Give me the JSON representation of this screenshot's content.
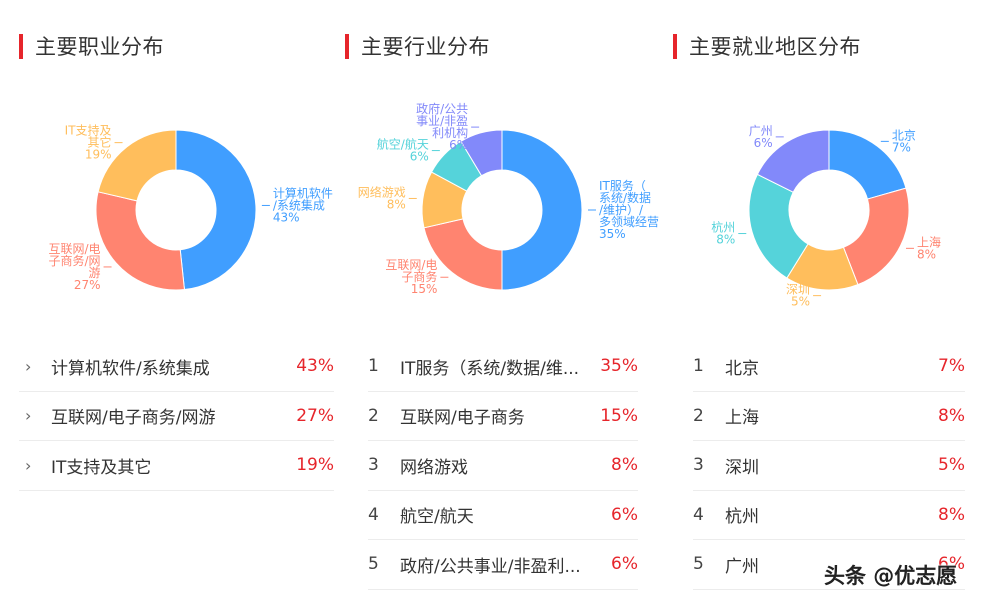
{
  "panels": [
    {
      "title": "主要职业分布",
      "list": [
        {
          "name": "计算机软件/系统集成",
          "pct": "43%"
        },
        {
          "name": "互联网/电子商务/网游",
          "pct": "27%"
        },
        {
          "name": "IT支持及其它",
          "pct": "19%"
        }
      ]
    },
    {
      "title": "主要行业分布",
      "list": [
        {
          "idx": "1",
          "name": "IT服务（系统/数据/维...",
          "pct": "35%"
        },
        {
          "idx": "2",
          "name": "互联网/电子商务",
          "pct": "15%"
        },
        {
          "idx": "3",
          "name": "网络游戏",
          "pct": "8%"
        },
        {
          "idx": "4",
          "name": "航空/航天",
          "pct": "6%"
        },
        {
          "idx": "5",
          "name": "政府/公共事业/非盈利...",
          "pct": "6%"
        }
      ]
    },
    {
      "title": "主要就业地区分布",
      "list": [
        {
          "idx": "1",
          "name": "北京",
          "pct": "7%"
        },
        {
          "idx": "2",
          "name": "上海",
          "pct": "8%"
        },
        {
          "idx": "3",
          "name": "深圳",
          "pct": "5%"
        },
        {
          "idx": "4",
          "name": "杭州",
          "pct": "8%"
        },
        {
          "idx": "5",
          "name": "广州",
          "pct": "6%"
        }
      ]
    }
  ],
  "watermark": "头条 @优志愿",
  "colors": {
    "accent": "#e6252b",
    "blue": "#409eff",
    "salmon": "#ff8470",
    "orange": "#ffbe5c",
    "cyan": "#55d3da",
    "purple": "#8289fa"
  },
  "chart_data": [
    {
      "type": "pie",
      "title": "主要职业分布",
      "categories": [
        "计算机软件/系统集成",
        "互联网/电子商务/网游",
        "IT支持及其它"
      ],
      "values": [
        43,
        27,
        19
      ],
      "labels": [
        "43%",
        "27%",
        "19%"
      ],
      "colors": [
        "#409eff",
        "#ff8470",
        "#ffbe5c"
      ],
      "donut": true
    },
    {
      "type": "pie",
      "title": "主要行业分布",
      "categories": [
        "IT服务（系统/数据/维护）/多领域经营",
        "互联网/电子商务",
        "网络游戏",
        "航空/航天",
        "政府/公共事业/非盈利机构"
      ],
      "values": [
        35,
        15,
        8,
        6,
        6
      ],
      "labels": [
        "35%",
        "15%",
        "8%",
        "6%",
        "6%"
      ],
      "colors": [
        "#409eff",
        "#ff8470",
        "#ffbe5c",
        "#55d3da",
        "#8289fa"
      ],
      "donut": true
    },
    {
      "type": "pie",
      "title": "主要就业地区分布",
      "categories": [
        "北京",
        "上海",
        "深圳",
        "杭州",
        "广州"
      ],
      "values": [
        7,
        8,
        5,
        8,
        6
      ],
      "labels": [
        "7%",
        "8%",
        "5%",
        "8%",
        "6%"
      ],
      "colors": [
        "#409eff",
        "#ff8470",
        "#ffbe5c",
        "#55d3da",
        "#8289fa"
      ],
      "donut": true
    }
  ],
  "chart_labels": {
    "c1": [
      {
        "lines": [
          "计算机软件",
          "/系统集成",
          "43%"
        ]
      },
      {
        "lines": [
          "互联网/电",
          "子商务/网",
          "游",
          "27%"
        ]
      },
      {
        "lines": [
          "IT支持及",
          "其它",
          "19%"
        ]
      }
    ],
    "c2": [
      {
        "lines": [
          "IT服务（",
          "系统/数据",
          "/维护）/",
          "多领域经营",
          "35%"
        ]
      },
      {
        "lines": [
          "互联网/电",
          "子商务",
          "15%"
        ]
      },
      {
        "lines": [
          "网络游戏",
          "8%"
        ]
      },
      {
        "lines": [
          "航空/航天",
          "6%"
        ]
      },
      {
        "lines": [
          "政府/公共",
          "事业/非盈",
          "利机构",
          "6%"
        ]
      }
    ],
    "c3": [
      {
        "lines": [
          "北京",
          "7%"
        ]
      },
      {
        "lines": [
          "上海",
          "8%"
        ]
      },
      {
        "lines": [
          "深圳",
          "5%"
        ]
      },
      {
        "lines": [
          "杭州",
          "8%"
        ]
      },
      {
        "lines": [
          "广州",
          "6%"
        ]
      }
    ]
  }
}
